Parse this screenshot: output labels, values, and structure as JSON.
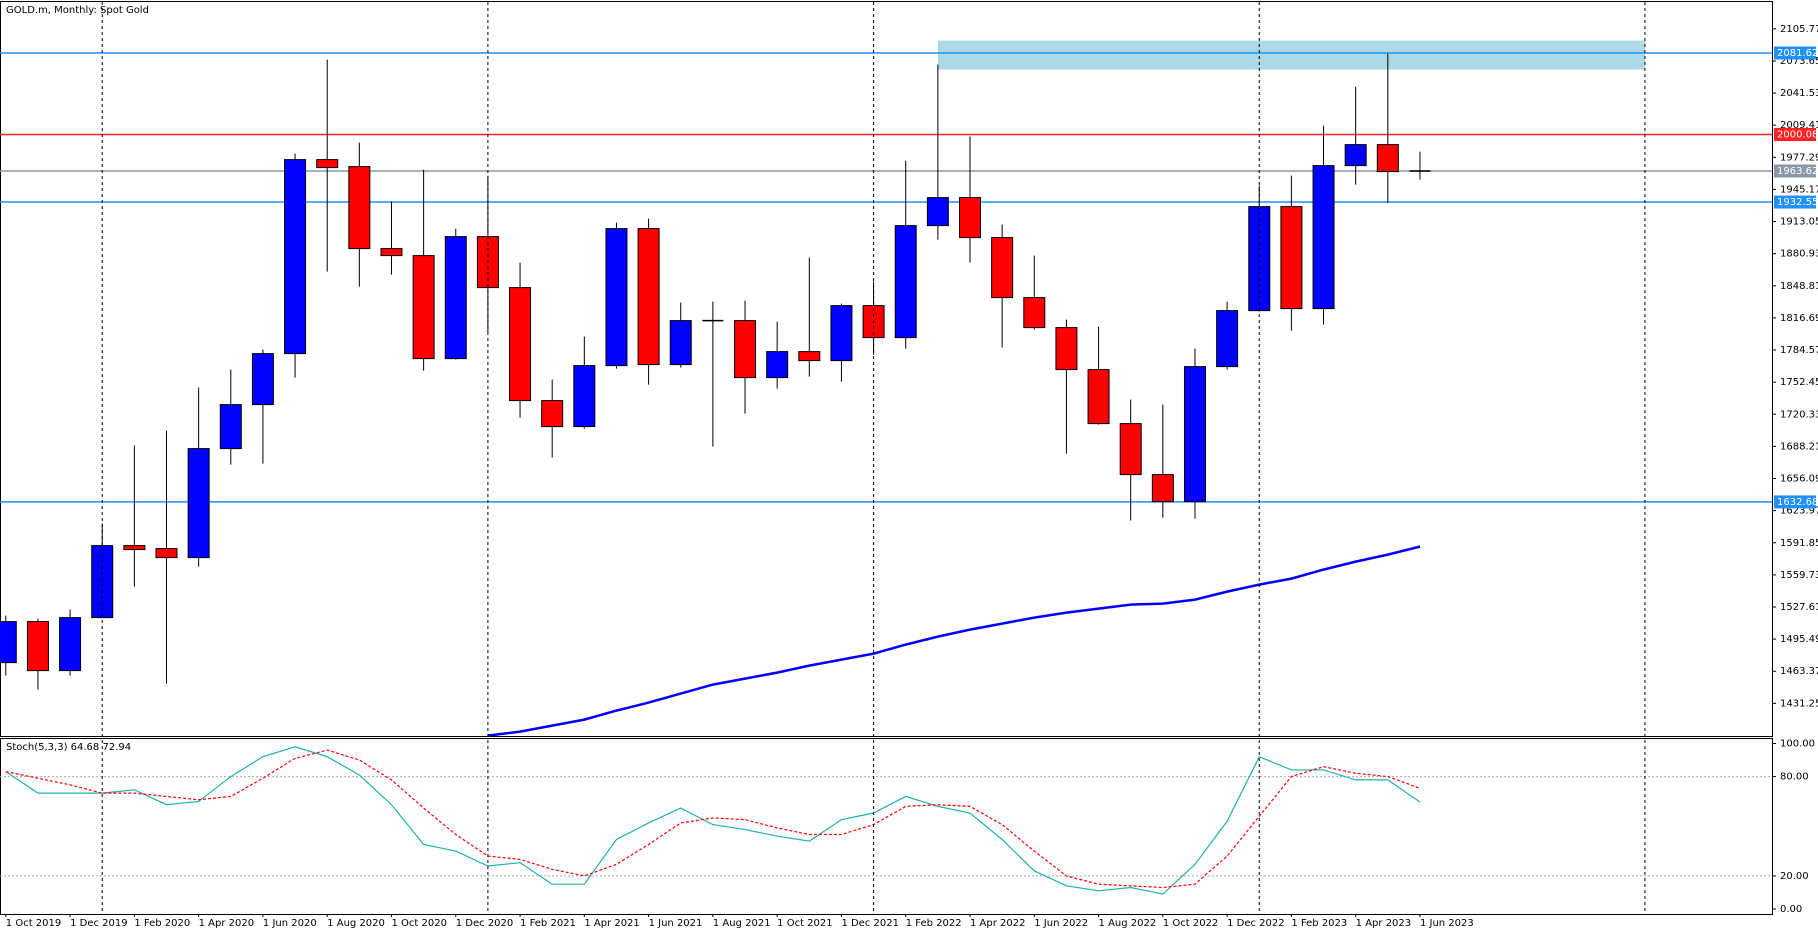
{
  "chart_data": [
    {
      "type": "candlestick",
      "title": "GOLD.m, Monthly:  Spot Gold",
      "categories": [
        "1 Oct 2019",
        null,
        "1 Dec 2019",
        null,
        "1 Feb 2020",
        null,
        "1 Apr 2020",
        null,
        "1 Jun 2020",
        null,
        "1 Aug 2020",
        null,
        "1 Oct 2020",
        null,
        "1 Dec 2020",
        null,
        "1 Feb 2021",
        null,
        "1 Apr 2021",
        null,
        "1 Jun 2021",
        null,
        "1 Aug 2021",
        null,
        "1 Oct 2021",
        null,
        "1 Dec 2021",
        null,
        "1 Feb 2022",
        null,
        "1 Apr 2022",
        null,
        "1 Jun 2022",
        null,
        "1 Aug 2022",
        null,
        "1 Oct 2022",
        null,
        "1 Dec 2022",
        null,
        "1 Feb 2023",
        null,
        "1 Apr 2023",
        null,
        "1 Jun 2023"
      ],
      "open": [
        1472,
        1513,
        1464,
        1517,
        1589,
        1586,
        1577,
        1686,
        1730,
        1781,
        1975,
        1968,
        1886,
        1879,
        1776,
        1898,
        1847,
        1734,
        1708,
        1769,
        1906,
        1770,
        1814,
        1814,
        1757,
        1783,
        1774,
        1829,
        1797,
        1909,
        1937,
        1897,
        1837,
        1807,
        1765,
        1711,
        1660,
        1633,
        1768,
        1824,
        1928,
        1826,
        1969,
        1990,
        1963.62
      ],
      "high": [
        1519,
        1516,
        1525,
        1611,
        1689,
        1704,
        1747,
        1765,
        1785,
        1981,
        2075,
        1992,
        1933,
        1965,
        1906,
        1959,
        1872,
        1755,
        1798,
        1912,
        1916,
        1832,
        1833,
        1834,
        1813,
        1877,
        1831,
        1853,
        1974,
        2070,
        1998,
        1910,
        1879,
        1815,
        1808,
        1735,
        1730,
        1786,
        1833,
        1949,
        1959,
        2009,
        2048,
        2081,
        1983
      ],
      "low": [
        1459,
        1445,
        1459,
        1517,
        1548,
        1451,
        1568,
        1670,
        1671,
        1757,
        1863,
        1848,
        1860,
        1764,
        1775,
        1802,
        1717,
        1677,
        1706,
        1766,
        1750,
        1767,
        1688,
        1721,
        1746,
        1758,
        1753,
        1780,
        1786,
        1895,
        1872,
        1787,
        1805,
        1681,
        1710,
        1614,
        1617,
        1616,
        1765,
        1823,
        1804,
        1810,
        1950,
        1932,
        1955
      ],
      "close": [
        1513,
        1464,
        1517,
        1589,
        1585,
        1577,
        1686,
        1730,
        1781,
        1975,
        1967,
        1886,
        1879,
        1776,
        1898,
        1847,
        1734,
        1708,
        1769,
        1906,
        1770,
        1814,
        1814,
        1757,
        1783,
        1774,
        1829,
        1797,
        1909,
        1937,
        1897,
        1837,
        1807,
        1765,
        1711,
        1660,
        1633,
        1768,
        1824,
        1928,
        1826,
        1969,
        1990,
        1963,
        1963.62
      ],
      "up_color": "#0000ff",
      "down_color": "#ff0000",
      "ma": {
        "color": "#0000ff",
        "values": [
          null,
          null,
          null,
          null,
          null,
          null,
          null,
          null,
          null,
          null,
          null,
          null,
          null,
          null,
          null,
          1399,
          1403,
          1409,
          1415,
          1424,
          1432,
          1441,
          1450,
          1456,
          1462,
          1469,
          1475,
          1481,
          1490,
          1498,
          1505,
          1511,
          1517,
          1522,
          1526,
          1530,
          1531,
          1535,
          1543,
          1550,
          1556,
          1565,
          1573,
          1580,
          1588
        ]
      },
      "ylim": [
        1398.6,
        2132.6
      ],
      "yticks": [
        2105.77,
        2073.65,
        2041.53,
        2009.41,
        1977.29,
        1945.17,
        1913.05,
        1880.93,
        1848.81,
        1816.69,
        1784.57,
        1752.45,
        1720.33,
        1688.21,
        1656.09,
        1623.97,
        1591.85,
        1559.73,
        1527.61,
        1495.49,
        1463.37,
        1431.25
      ],
      "hlines": [
        {
          "value": 2081.62,
          "color": "#1e90ff"
        },
        {
          "value": 2000.08,
          "color": "#ff2020"
        },
        {
          "value": 1963.62,
          "color": "#8a98a8"
        },
        {
          "value": 1932.55,
          "color": "#1e90ff"
        },
        {
          "value": 1632.68,
          "color": "#1e90ff"
        }
      ],
      "zone": {
        "start": 29,
        "low": 2065,
        "high": 2094,
        "color": "#add8e6"
      },
      "grid": true
    },
    {
      "type": "line",
      "title": "Stoch(5,3,3) 64.68 72.94",
      "series": [
        {
          "color": "#20b2aa",
          "dash": false,
          "values": [
            83,
            70,
            70,
            70,
            72,
            63,
            65,
            80,
            92,
            98,
            92,
            81,
            63,
            39,
            35,
            26,
            28,
            15,
            15,
            42,
            52,
            61,
            51,
            48,
            44,
            41,
            54,
            58,
            68,
            62,
            58,
            42,
            23,
            14,
            11,
            13,
            9,
            27,
            53,
            92,
            84,
            84,
            78,
            78,
            64.68
          ]
        },
        {
          "color": "#ff0000",
          "dash": true,
          "values": [
            83,
            79,
            75,
            70,
            70,
            68,
            66,
            68,
            79,
            91,
            96,
            90,
            78,
            61,
            45,
            32,
            30,
            24,
            20,
            27,
            39,
            52,
            55,
            54,
            49,
            45,
            45,
            51,
            62,
            63,
            62,
            51,
            35,
            20,
            15,
            14,
            13,
            15,
            32,
            56,
            80,
            86,
            82,
            80,
            72.94
          ]
        }
      ],
      "ylim": [
        -3,
        102.7
      ],
      "yticks": [
        {
          "value": 100,
          "label": "100.00"
        },
        {
          "value": 80,
          "label": "80.00"
        },
        {
          "value": 20,
          "label": "20.00"
        },
        {
          "value": 0,
          "label": "0.00"
        }
      ],
      "levels": [
        80,
        20
      ]
    }
  ]
}
